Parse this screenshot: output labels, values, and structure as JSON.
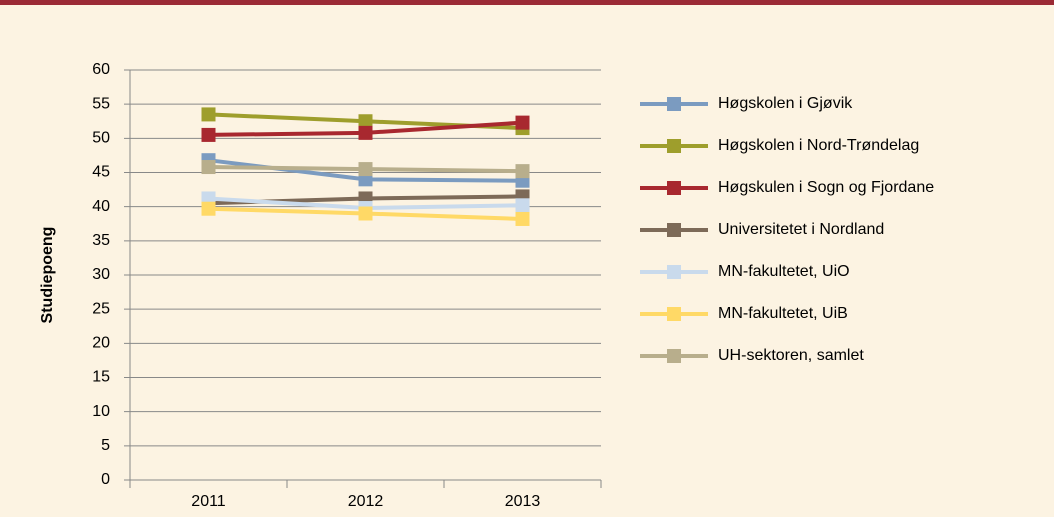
{
  "chart_data": {
    "type": "line",
    "y_label": "Studiepoeng",
    "categories": [
      "2011",
      "2012",
      "2013"
    ],
    "series": [
      {
        "name": "Høgskolen i Gjøvik",
        "color": "#7b9bc0",
        "values": [
          46.8,
          44,
          43.8
        ]
      },
      {
        "name": "Høgskolen i Nord-Trøndelag",
        "color": "#9e9e2c",
        "values": [
          53.5,
          52.5,
          51.5
        ]
      },
      {
        "name": "Høgskulen i Sogn og Fjordane",
        "color": "#a8282f",
        "values": [
          50.5,
          50.8,
          52.3
        ]
      },
      {
        "name": "Universitetet i Nordland",
        "color": "#7d6a58",
        "values": [
          40.5,
          41.2,
          41.5
        ]
      },
      {
        "name": "MN-fakultetet, UiO",
        "color": "#c9daec",
        "values": [
          41.2,
          39.8,
          40.2
        ]
      },
      {
        "name": "MN-fakultetet, UiB",
        "color": "#ffd966",
        "values": [
          39.7,
          39,
          38.2
        ]
      },
      {
        "name": "UH-sektoren, samlet",
        "color": "#b8ae8c",
        "values": [
          45.8,
          45.5,
          45.2
        ]
      }
    ],
    "ylim": [
      0,
      60
    ],
    "yticks": [
      0,
      5,
      10,
      15,
      20,
      25,
      30,
      35,
      40,
      45,
      50,
      55,
      60
    ],
    "grid": true,
    "legend": "right"
  }
}
